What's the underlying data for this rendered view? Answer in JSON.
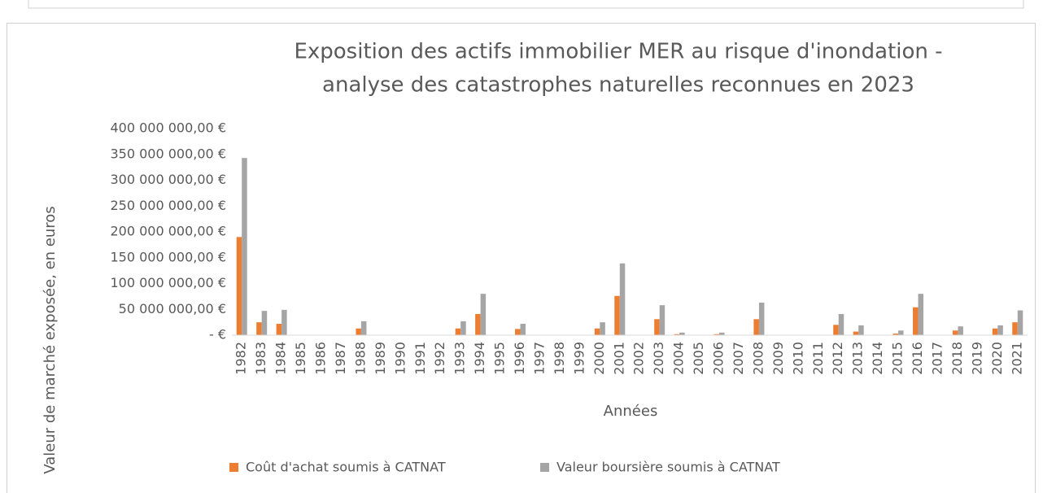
{
  "chart_data": {
    "type": "bar",
    "title": [
      "Exposition des actifs immobilier MER au risque d'inondation -",
      "analyse des catastrophes naturelles reconnues en 2023"
    ],
    "x_label": "Années",
    "y_label": "Valeur de marché exposée, en euros",
    "categories": [
      "1982",
      "1983",
      "1984",
      "1985",
      "1986",
      "1987",
      "1988",
      "1989",
      "1990",
      "1991",
      "1992",
      "1993",
      "1994",
      "1995",
      "1996",
      "1997",
      "1998",
      "1999",
      "2000",
      "2001",
      "2002",
      "2003",
      "2004",
      "2005",
      "2006",
      "2007",
      "2008",
      "2009",
      "2010",
      "2011",
      "2012",
      "2013",
      "2014",
      "2015",
      "2016",
      "2017",
      "2018",
      "2019",
      "2020",
      "2021"
    ],
    "series": [
      {
        "name": "Coût d'achat soumis à CATNAT",
        "color": "#ed7d31",
        "values": [
          190000000,
          25000000,
          22000000,
          0,
          0,
          0,
          13000000,
          0,
          0,
          0,
          0,
          13000000,
          41000000,
          0,
          12000000,
          0,
          0,
          0,
          13000000,
          76000000,
          0,
          31000000,
          2000000,
          0,
          2000000,
          0,
          31000000,
          0,
          0,
          0,
          20000000,
          7000000,
          0,
          3000000,
          54000000,
          0,
          9000000,
          0,
          13000000,
          25000000
        ]
      },
      {
        "name": "Valeur boursière soumis à CATNAT",
        "color": "#a5a5a5",
        "values": [
          343000000,
          47000000,
          49000000,
          0,
          0,
          0,
          27000000,
          0,
          0,
          0,
          0,
          27000000,
          80000000,
          0,
          22000000,
          0,
          0,
          0,
          25000000,
          139000000,
          0,
          58000000,
          5000000,
          0,
          5000000,
          0,
          63000000,
          0,
          0,
          0,
          41000000,
          19000000,
          0,
          9000000,
          80000000,
          0,
          17000000,
          0,
          19000000,
          48000000
        ]
      }
    ],
    "ylim": [
      0,
      400000000
    ],
    "yticks": [
      {
        "value": 0,
        "label": "-   €"
      },
      {
        "value": 50000000,
        "label": "50 000 000,00 €"
      },
      {
        "value": 100000000,
        "label": "100 000 000,00 €"
      },
      {
        "value": 150000000,
        "label": "150 000 000,00 €"
      },
      {
        "value": 200000000,
        "label": "200 000 000,00 €"
      },
      {
        "value": 250000000,
        "label": "250 000 000,00 €"
      },
      {
        "value": 300000000,
        "label": "300 000 000,00 €"
      },
      {
        "value": 350000000,
        "label": "350 000 000,00 €"
      },
      {
        "value": 400000000,
        "label": "400 000 000,00 €"
      }
    ],
    "grid": false,
    "legend": "bottom"
  }
}
